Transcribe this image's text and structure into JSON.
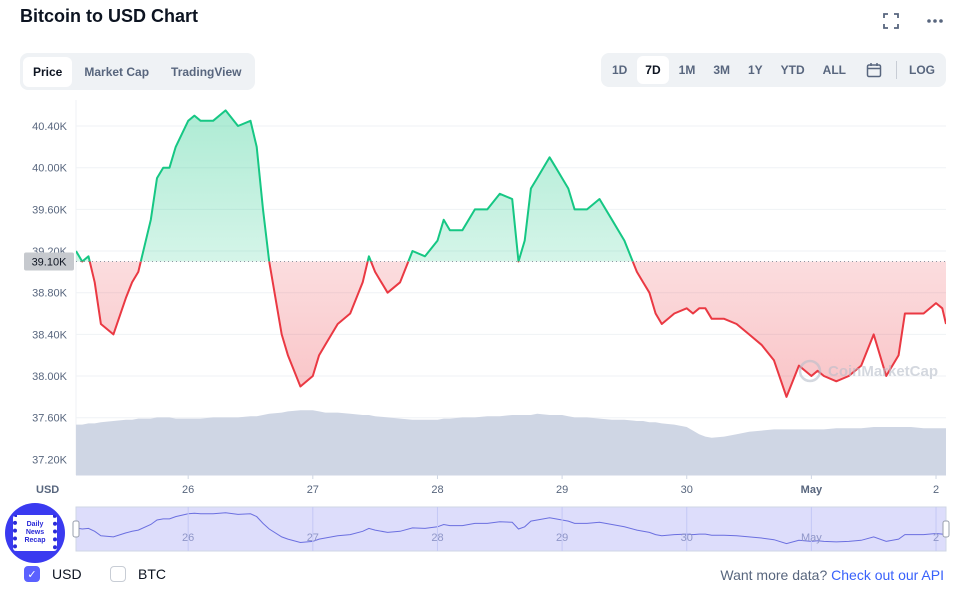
{
  "header": {
    "title": "Bitcoin to USD Chart",
    "tabs": [
      "Price",
      "Market Cap",
      "TradingView"
    ],
    "ranges": [
      "1D",
      "7D",
      "1M",
      "3M",
      "1Y",
      "YTD",
      "ALL"
    ],
    "log_label": "LOG",
    "active_tab": "Price",
    "active_range": "7D"
  },
  "chart_data": {
    "type": "line",
    "currency_label": "USD",
    "y_ticks": [
      "40.40K",
      "40.00K",
      "39.60K",
      "39.20K",
      "38.80K",
      "38.40K",
      "38.00K",
      "37.60K",
      "37.20K"
    ],
    "y_tick_values": [
      40400,
      40000,
      39600,
      39200,
      38800,
      38400,
      38000,
      37600,
      37200
    ],
    "ylim": [
      37050,
      40650
    ],
    "x_ticks": [
      "26",
      "27",
      "28",
      "29",
      "30",
      "May",
      "2"
    ],
    "x_tick_days": [
      1,
      2,
      3,
      4,
      5,
      6,
      7
    ],
    "xlim": [
      0.1,
      7.08
    ],
    "reference_label": "39.10K",
    "reference_value": 39100,
    "colors": {
      "up": "#16c784",
      "down": "#ea3943",
      "volume": "#cfd6e4",
      "navigator": "#ddddfb"
    },
    "x": [
      0.1,
      0.15,
      0.2,
      0.25,
      0.3,
      0.4,
      0.5,
      0.55,
      0.6,
      0.7,
      0.75,
      0.8,
      0.85,
      0.9,
      1.0,
      1.05,
      1.1,
      1.2,
      1.3,
      1.4,
      1.5,
      1.55,
      1.6,
      1.65,
      1.75,
      1.8,
      1.9,
      2.0,
      2.05,
      2.1,
      2.2,
      2.3,
      2.4,
      2.45,
      2.5,
      2.6,
      2.7,
      2.8,
      2.9,
      3.0,
      3.05,
      3.1,
      3.2,
      3.3,
      3.4,
      3.5,
      3.6,
      3.65,
      3.7,
      3.75,
      3.8,
      3.9,
      3.95,
      4.0,
      4.05,
      4.1,
      4.2,
      4.3,
      4.4,
      4.5,
      4.6,
      4.65,
      4.7,
      4.75,
      4.8,
      4.9,
      5.0,
      5.05,
      5.1,
      5.15,
      5.2,
      5.3,
      5.4,
      5.5,
      5.6,
      5.7,
      5.8,
      5.9,
      6.0,
      6.05,
      6.1,
      6.2,
      6.3,
      6.4,
      6.5,
      6.6,
      6.7,
      6.75,
      6.8,
      6.9,
      7.0,
      7.05,
      7.08
    ],
    "values": [
      39200,
      39100,
      39150,
      38900,
      38500,
      38400,
      38750,
      38900,
      39000,
      39500,
      39900,
      40000,
      40000,
      40200,
      40450,
      40500,
      40450,
      40450,
      40550,
      40400,
      40450,
      40200,
      39600,
      39100,
      38400,
      38200,
      37900,
      38000,
      38200,
      38300,
      38500,
      38600,
      38900,
      39150,
      39000,
      38800,
      38900,
      39200,
      39150,
      39300,
      39500,
      39400,
      39400,
      39600,
      39600,
      39750,
      39700,
      39100,
      39300,
      39800,
      39900,
      40100,
      40000,
      39900,
      39800,
      39600,
      39600,
      39700,
      39500,
      39300,
      39000,
      38900,
      38800,
      38600,
      38500,
      38600,
      38650,
      38600,
      38650,
      38650,
      38550,
      38550,
      38500,
      38400,
      38300,
      38150,
      37800,
      38100,
      38000,
      38050,
      38000,
      37950,
      38000,
      38100,
      38400,
      38000,
      38200,
      38600,
      38600,
      38600,
      38700,
      38650,
      38500
    ],
    "volume": [
      0.42,
      0.42,
      0.43,
      0.43,
      0.44,
      0.45,
      0.46,
      0.46,
      0.47,
      0.47,
      0.48,
      0.48,
      0.48,
      0.47,
      0.47,
      0.47,
      0.47,
      0.48,
      0.48,
      0.48,
      0.49,
      0.49,
      0.5,
      0.51,
      0.52,
      0.53,
      0.54,
      0.54,
      0.53,
      0.52,
      0.52,
      0.51,
      0.5,
      0.5,
      0.49,
      0.48,
      0.47,
      0.46,
      0.46,
      0.46,
      0.47,
      0.47,
      0.48,
      0.48,
      0.49,
      0.49,
      0.5,
      0.5,
      0.5,
      0.5,
      0.51,
      0.5,
      0.5,
      0.5,
      0.49,
      0.48,
      0.48,
      0.47,
      0.46,
      0.46,
      0.45,
      0.45,
      0.44,
      0.44,
      0.43,
      0.42,
      0.4,
      0.37,
      0.34,
      0.32,
      0.31,
      0.32,
      0.34,
      0.36,
      0.37,
      0.38,
      0.38,
      0.38,
      0.38,
      0.38,
      0.38,
      0.39,
      0.39,
      0.39,
      0.4,
      0.4,
      0.4,
      0.4,
      0.4,
      0.39,
      0.39,
      0.39,
      0.39
    ]
  },
  "watermark": "CoinMarketCap",
  "footer": {
    "usd_label": "USD",
    "btc_label": "BTC",
    "more_text": "Want more data?",
    "api_link": "Check out our API"
  },
  "badge": {
    "line1": "Daily",
    "line2": "News",
    "line3": "Recap"
  }
}
